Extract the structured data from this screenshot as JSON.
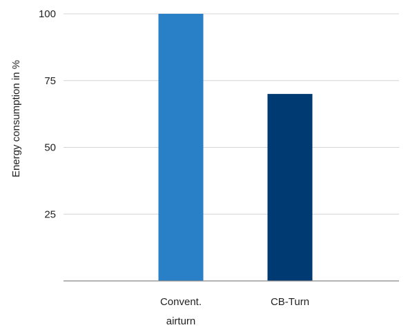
{
  "chart_data": {
    "type": "bar",
    "title": "",
    "xlabel": "",
    "ylabel": "Energy consumption in %",
    "categories": [
      [
        "Convent.",
        "airturn"
      ],
      [
        "CB-Turn"
      ]
    ],
    "values": [
      100,
      70
    ],
    "colors": [
      "#2a80c6",
      "#003a73"
    ],
    "ylim": [
      0,
      100
    ],
    "yticks": [
      25,
      50,
      75,
      100
    ],
    "grid": true,
    "legend": "none"
  }
}
